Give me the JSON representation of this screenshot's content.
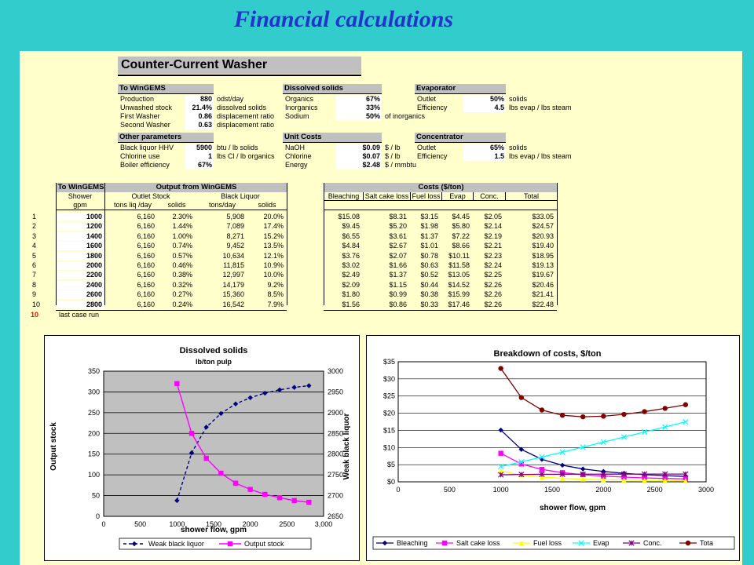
{
  "title": "Financial calculations",
  "washer": {
    "heading": "Counter-Current Washer",
    "to_wingems": {
      "header": "To WinGEMS",
      "rows": [
        {
          "label": "Production",
          "value": "880",
          "unit": "odst/day"
        },
        {
          "label": "Unwashed stock",
          "value": "21.4%",
          "unit": "dissolved solids"
        },
        {
          "label": "First Washer",
          "value": "0.86",
          "unit": "displacement ratio"
        },
        {
          "label": "Second Washer",
          "value": "0.63",
          "unit": "displacement ratio"
        }
      ]
    },
    "dissolved": {
      "header": "Dissolved solids",
      "rows": [
        {
          "label": "Organics",
          "value": "67%",
          "unit": ""
        },
        {
          "label": "Inorganics",
          "value": "33%",
          "unit": ""
        },
        {
          "label": "Sodium",
          "value": "50%",
          "unit": "of inorganics"
        }
      ]
    },
    "evaporator": {
      "header": "Evaporator",
      "rows": [
        {
          "label": "Outlet",
          "value": "50%",
          "unit": "solids"
        },
        {
          "label": "Efficiency",
          "value": "4.5",
          "unit": "lbs evap / lbs steam"
        }
      ]
    },
    "other": {
      "header": "Other parameters",
      "rows": [
        {
          "label": "Black liquor HHV",
          "value": "5900",
          "unit": "btu / lb solids"
        },
        {
          "label": "Chlorine use",
          "value": "1",
          "unit": "lbs Cl / lb organics"
        },
        {
          "label": "Boiler efficiency",
          "value": "67%",
          "unit": ""
        }
      ]
    },
    "unit_costs": {
      "header": "Unit Costs",
      "rows": [
        {
          "label": "NaOH",
          "value": "$0.09",
          "unit": "$ / lb"
        },
        {
          "label": "Chlorine",
          "value": "$0.07",
          "unit": "$ / lb"
        },
        {
          "label": "Energy",
          "value": "$2.48",
          "unit": "$ / mmbtu"
        }
      ]
    },
    "concentrator": {
      "header": "Concentrator",
      "rows": [
        {
          "label": "Outlet",
          "value": "65%",
          "unit": "solids"
        },
        {
          "label": "Efficiency",
          "value": "1.5",
          "unit": "lbs evap / lbs steam"
        }
      ]
    }
  },
  "results": {
    "to_header": "To WinGEMS",
    "output_header": "Output from WinGEMS",
    "shower_label": "Shower",
    "gpm_label": "gpm",
    "outlet_stock_label": "Outlet Stock",
    "black_liquor_label": "Black Liquor",
    "sub_cols": [
      "tons liq /day",
      "solids",
      "tons/day",
      "solids"
    ],
    "costs_header": "Costs ($/ton)",
    "cost_cols": [
      "Bleaching",
      "Salt cake loss",
      "Fuel loss",
      "Evap",
      "Conc.",
      "Total"
    ],
    "rows": [
      {
        "n": "1",
        "gpm": "1000",
        "tl": "6,160",
        "s1": "2.30%",
        "td": "5,908",
        "s2": "20.0%",
        "c": [
          "$15.08",
          "$8.31",
          "$3.15",
          "$4.45",
          "$2.05",
          "$33.05"
        ]
      },
      {
        "n": "2",
        "gpm": "1200",
        "tl": "6,160",
        "s1": "1.44%",
        "td": "7,089",
        "s2": "17.4%",
        "c": [
          "$9.45",
          "$5.20",
          "$1.98",
          "$5.80",
          "$2.14",
          "$24.57"
        ]
      },
      {
        "n": "3",
        "gpm": "1400",
        "tl": "6,160",
        "s1": "1.00%",
        "td": "8,271",
        "s2": "15.2%",
        "c": [
          "$6.55",
          "$3.61",
          "$1.37",
          "$7.22",
          "$2.19",
          "$20.93"
        ]
      },
      {
        "n": "4",
        "gpm": "1600",
        "tl": "6,160",
        "s1": "0.74%",
        "td": "9,452",
        "s2": "13.5%",
        "c": [
          "$4.84",
          "$2.67",
          "$1.01",
          "$8.66",
          "$2.21",
          "$19.40"
        ]
      },
      {
        "n": "5",
        "gpm": "1800",
        "tl": "6,160",
        "s1": "0.57%",
        "td": "10,634",
        "s2": "12.1%",
        "c": [
          "$3.76",
          "$2.07",
          "$0.78",
          "$10.11",
          "$2.23",
          "$18.95"
        ]
      },
      {
        "n": "6",
        "gpm": "2000",
        "tl": "6,160",
        "s1": "0.46%",
        "td": "11,815",
        "s2": "10.9%",
        "c": [
          "$3.02",
          "$1.66",
          "$0.63",
          "$11.58",
          "$2.24",
          "$19.13"
        ]
      },
      {
        "n": "7",
        "gpm": "2200",
        "tl": "6,160",
        "s1": "0.38%",
        "td": "12,997",
        "s2": "10.0%",
        "c": [
          "$2.49",
          "$1.37",
          "$0.52",
          "$13.05",
          "$2.25",
          "$19.67"
        ]
      },
      {
        "n": "8",
        "gpm": "2400",
        "tl": "6,160",
        "s1": "0.32%",
        "td": "14,179",
        "s2": "9.2%",
        "c": [
          "$2.09",
          "$1.15",
          "$0.44",
          "$14.52",
          "$2.26",
          "$20.46"
        ]
      },
      {
        "n": "9",
        "gpm": "2600",
        "tl": "6,160",
        "s1": "0.27%",
        "td": "15,360",
        "s2": "8.5%",
        "c": [
          "$1.80",
          "$0.99",
          "$0.38",
          "$15.99",
          "$2.26",
          "$21.41"
        ]
      },
      {
        "n": "10",
        "gpm": "2800",
        "tl": "6,160",
        "s1": "0.24%",
        "td": "16,542",
        "s2": "7.9%",
        "c": [
          "$1.56",
          "$0.86",
          "$0.33",
          "$17.46",
          "$2.26",
          "$22.48"
        ]
      }
    ],
    "last_run_num": "10",
    "last_run_label": "last case run"
  },
  "chart_data": [
    {
      "type": "line",
      "title": "Dissolved solids",
      "subtitle": "lb/ton pulp",
      "xlabel": "shower flow, gpm",
      "ylabel": "Output stock",
      "y2label": "Weak black liquor",
      "xlim": [
        0,
        3000
      ],
      "xticks": [
        "0",
        "500",
        "1000",
        "1500",
        "2000",
        "2500",
        "3,000"
      ],
      "ylim": [
        0,
        350
      ],
      "yticks": [
        "0",
        "50",
        "100",
        "150",
        "200",
        "250",
        "300",
        "350"
      ],
      "y2lim": [
        2650,
        3000
      ],
      "y2ticks": [
        "2650",
        "2700",
        "2750",
        "2800",
        "2850",
        "2900",
        "2950",
        "3000"
      ],
      "x": [
        1000,
        1200,
        1400,
        1600,
        1800,
        2000,
        2200,
        2400,
        2600,
        2800
      ],
      "series": [
        {
          "name": "Weak black liquor",
          "axis": "right",
          "color": "#000080",
          "dashed": true,
          "marker": "diamond",
          "values": [
            2688,
            2803,
            2865,
            2898,
            2921,
            2936,
            2947,
            2955,
            2961,
            2965
          ]
        },
        {
          "name": "Output stock",
          "axis": "left",
          "color": "#ff00ff",
          "dashed": false,
          "marker": "square",
          "values": [
            320,
            200,
            140,
            104,
            80,
            65,
            53,
            45,
            38,
            34
          ]
        }
      ],
      "grid": true,
      "legend": "bottom"
    },
    {
      "type": "line",
      "title": "Breakdown of costs, $/ton",
      "xlabel": "shower flow, gpm",
      "xlim": [
        0,
        3000
      ],
      "xticks": [
        "0",
        "500",
        "1000",
        "1500",
        "2000",
        "2500",
        "3000"
      ],
      "ylim": [
        0,
        35
      ],
      "yticks": [
        "$0",
        "$5",
        "$10",
        "$15",
        "$20",
        "$25",
        "$30",
        "$35"
      ],
      "x": [
        1000,
        1200,
        1400,
        1600,
        1800,
        2000,
        2200,
        2400,
        2600,
        2800
      ],
      "series": [
        {
          "name": "Bleaching",
          "color": "#000080",
          "marker": "diamond",
          "values": [
            15.08,
            9.45,
            6.55,
            4.84,
            3.76,
            3.02,
            2.49,
            2.09,
            1.8,
            1.56
          ]
        },
        {
          "name": "Salt cake loss",
          "color": "#ff00ff",
          "marker": "square",
          "values": [
            8.31,
            5.2,
            3.61,
            2.67,
            2.07,
            1.66,
            1.37,
            1.15,
            0.99,
            0.86
          ]
        },
        {
          "name": "Fuel loss",
          "color": "#ffff00",
          "marker": "triangle",
          "values": [
            3.15,
            1.98,
            1.37,
            1.01,
            0.78,
            0.63,
            0.52,
            0.44,
            0.38,
            0.33
          ]
        },
        {
          "name": "Evap",
          "color": "#00ffff",
          "marker": "x",
          "values": [
            4.45,
            5.8,
            7.22,
            8.66,
            10.11,
            11.58,
            13.05,
            14.52,
            15.99,
            17.46
          ]
        },
        {
          "name": "Conc.",
          "color": "#800080",
          "marker": "star",
          "values": [
            2.05,
            2.14,
            2.19,
            2.21,
            2.23,
            2.24,
            2.25,
            2.26,
            2.26,
            2.26
          ]
        },
        {
          "name": "Tota",
          "color": "#800000",
          "marker": "circle",
          "values": [
            33.05,
            24.57,
            20.93,
            19.4,
            18.95,
            19.13,
            19.67,
            20.46,
            21.41,
            22.48
          ]
        }
      ],
      "grid": true,
      "legend": "bottom"
    }
  ]
}
